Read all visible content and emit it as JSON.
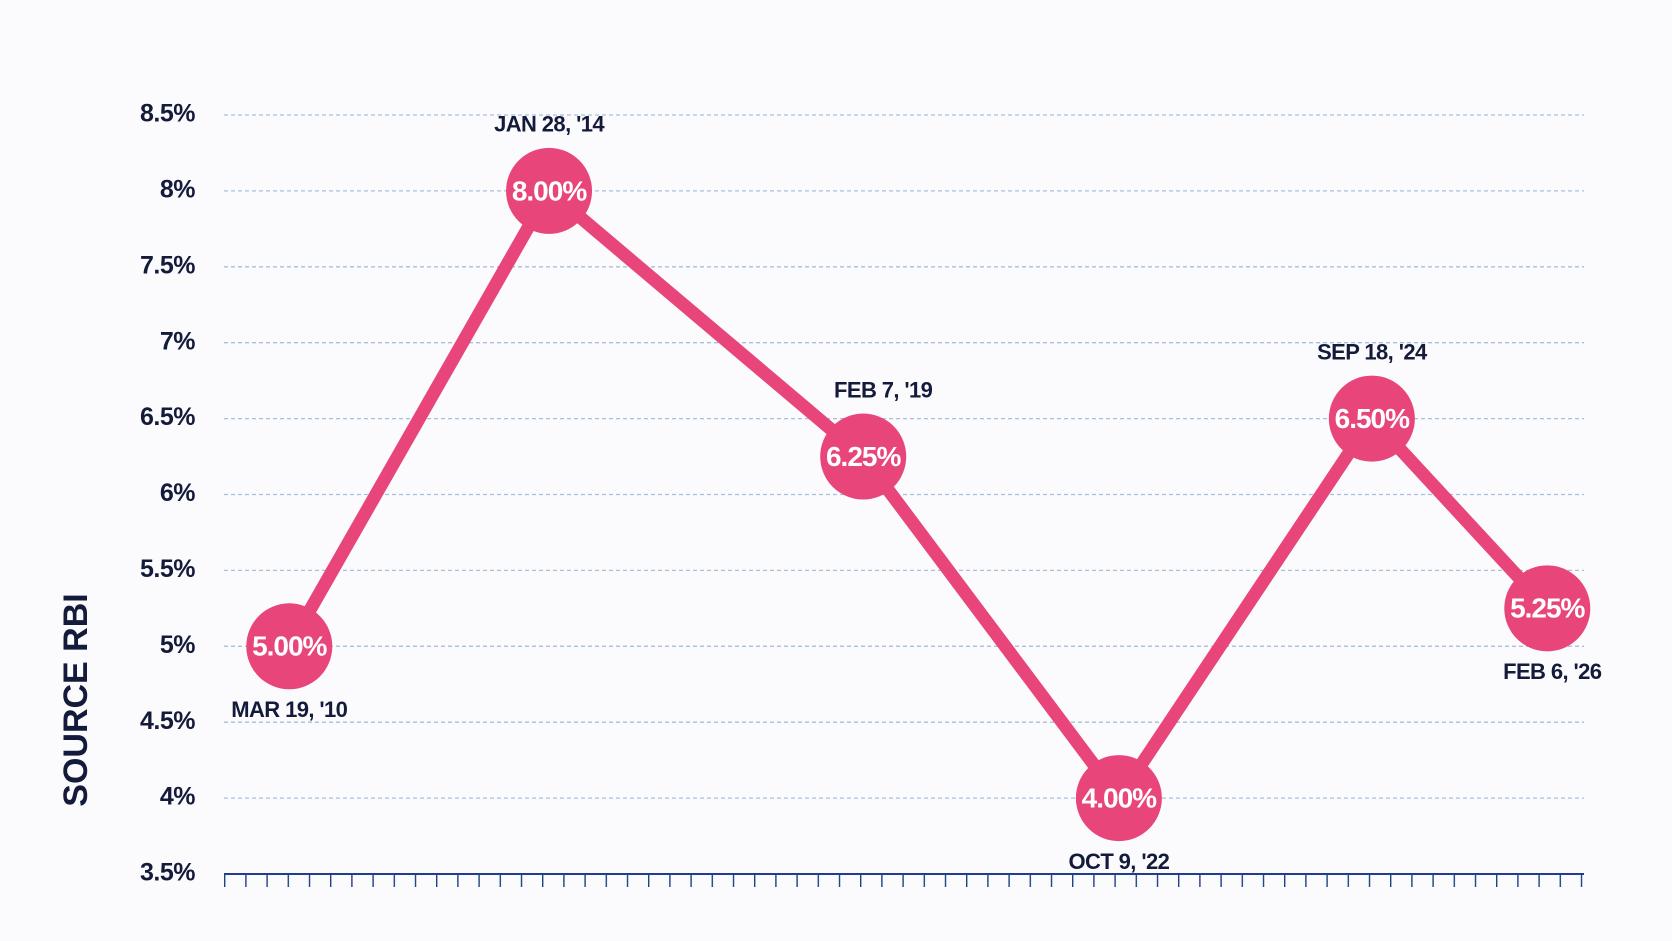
{
  "chart_data": {
    "type": "line",
    "y_axis_label": "SOURCE RBI",
    "categories": [
      "MAR 19, '10",
      "JAN 28, '14",
      "FEB 7, '19",
      "OCT 9, '22",
      "SEP 18, '24",
      "FEB 6, '26"
    ],
    "values": [
      5.0,
      8.0,
      6.25,
      4.0,
      6.5,
      5.25
    ],
    "value_labels": [
      "5.00%",
      "8.00%",
      "6.25%",
      "4.00%",
      "6.50%",
      "5.25%"
    ],
    "color": "#e8457a",
    "ylim": [
      3.5,
      8.5
    ],
    "yticks": [
      {
        "value": 3.5,
        "label": "3.5%"
      },
      {
        "value": 4,
        "label": "4%"
      },
      {
        "value": 4.5,
        "label": "4.5%"
      },
      {
        "value": 5,
        "label": "5%"
      },
      {
        "value": 5.5,
        "label": "5.5%"
      },
      {
        "value": 6,
        "label": "6%"
      },
      {
        "value": 6.5,
        "label": "6.5%"
      },
      {
        "value": 7,
        "label": "7%"
      },
      {
        "value": 7.5,
        "label": "7.5%"
      },
      {
        "value": 8,
        "label": "8%"
      },
      {
        "value": 8.5,
        "label": "8.5%"
      }
    ],
    "grid": true
  }
}
